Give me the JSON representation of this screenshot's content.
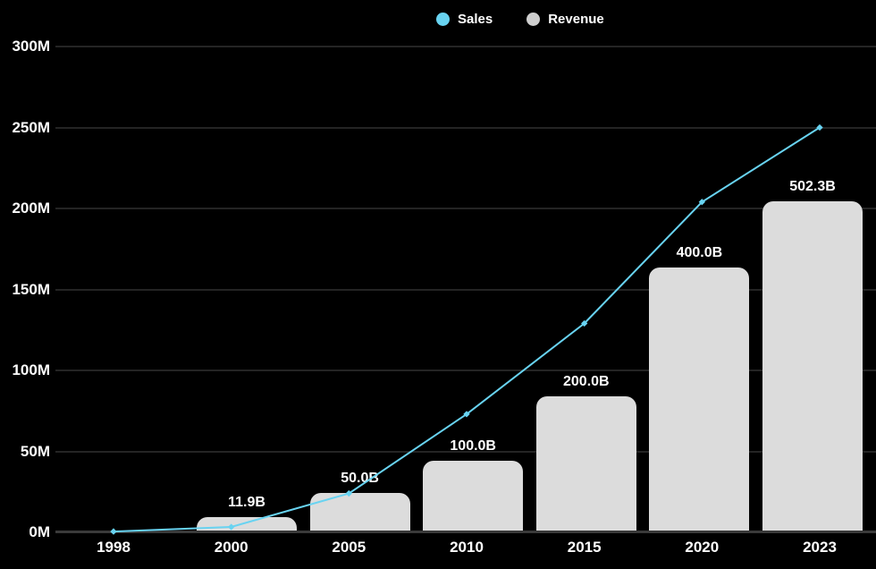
{
  "page": {
    "background": "#000000"
  },
  "legend": {
    "items": [
      {
        "label": "Sales",
        "color": "#68D3F1"
      },
      {
        "label": "Revenue",
        "color": "#CFCFCF"
      }
    ]
  },
  "chart_data": {
    "type": "composite",
    "subtypes": [
      "line",
      "bar"
    ],
    "title": "",
    "categories": [
      "1998",
      "2000",
      "2005",
      "2010",
      "2015",
      "2020",
      "2023"
    ],
    "series": [
      {
        "name": "Sales",
        "type": "line",
        "unit": "M",
        "color": "#68D3F1",
        "values": [
          0.5,
          3.3,
          24,
          73,
          129,
          204,
          250
        ]
      },
      {
        "name": "Revenue",
        "type": "bar",
        "unit": "B",
        "color": "#DCDCDC",
        "values": [
          null,
          11.9,
          50.0,
          100.0,
          200.0,
          400.0,
          502.3
        ],
        "labels": [
          "",
          "11.9B",
          "50.0B",
          "100.0B",
          "200.0B",
          "400.0B",
          "502.3B"
        ]
      }
    ],
    "yaxis": {
      "ticks": [
        "0M",
        "50M",
        "100M",
        "150M",
        "200M",
        "250M",
        "300M"
      ],
      "range": [
        0,
        300
      ],
      "grid": true
    },
    "xaxis": {
      "ticks": [
        "1998",
        "2000",
        "2005",
        "2010",
        "2015",
        "2020",
        "2023"
      ]
    },
    "legend_position": "top-center",
    "background": "#000000"
  }
}
